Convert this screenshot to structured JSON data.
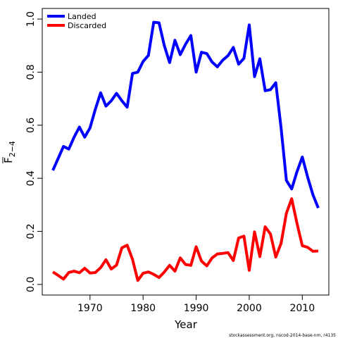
{
  "chart_data": {
    "type": "line",
    "xlabel": "Year",
    "ylabel_main": "F",
    "ylabel_sub": "2−4",
    "ylim": [
      -0.04,
      1.04
    ],
    "xlim": [
      1961,
      2015
    ],
    "xticks": [
      1970,
      1980,
      1990,
      2000,
      2010
    ],
    "xtick_labels": [
      "1970",
      "1980",
      "1990",
      "2000",
      "2010"
    ],
    "yticks": [
      0.0,
      0.2,
      0.4,
      0.6,
      0.8,
      1.0
    ],
    "ytick_labels": [
      "0.0",
      "0.2",
      "0.4",
      "0.6",
      "0.8",
      "1.0"
    ],
    "grid": false,
    "legend_position": "top-left",
    "footer": "stockassessment.org, nscod-2014-base-nm, r4135",
    "x": [
      1963,
      1964,
      1965,
      1966,
      1967,
      1968,
      1969,
      1970,
      1971,
      1972,
      1973,
      1974,
      1975,
      1976,
      1977,
      1978,
      1979,
      1980,
      1981,
      1982,
      1983,
      1984,
      1985,
      1986,
      1987,
      1988,
      1989,
      1990,
      1991,
      1992,
      1993,
      1994,
      1995,
      1996,
      1997,
      1998,
      1999,
      2000,
      2001,
      2002,
      2003,
      2004,
      2005,
      2006,
      2007,
      2008,
      2009,
      2010,
      2011,
      2012,
      2013
    ],
    "series": [
      {
        "name": "Landed",
        "color": "#0000ff",
        "values": [
          0.43,
          0.475,
          0.52,
          0.51,
          0.555,
          0.593,
          0.555,
          0.59,
          0.66,
          0.722,
          0.672,
          0.692,
          0.72,
          0.692,
          0.668,
          0.795,
          0.8,
          0.84,
          0.863,
          0.988,
          0.986,
          0.9,
          0.836,
          0.92,
          0.866,
          0.905,
          0.938,
          0.8,
          0.875,
          0.87,
          0.838,
          0.82,
          0.845,
          0.862,
          0.893,
          0.83,
          0.852,
          0.978,
          0.783,
          0.85,
          0.73,
          0.734,
          0.76,
          0.59,
          0.392,
          0.36,
          0.425,
          0.48,
          0.405,
          0.338,
          0.288
        ]
      },
      {
        "name": "Discarded",
        "color": "#ff0000",
        "values": [
          0.047,
          0.034,
          0.02,
          0.045,
          0.05,
          0.044,
          0.061,
          0.043,
          0.045,
          0.063,
          0.093,
          0.058,
          0.073,
          0.138,
          0.148,
          0.095,
          0.015,
          0.042,
          0.047,
          0.038,
          0.026,
          0.047,
          0.072,
          0.05,
          0.1,
          0.075,
          0.072,
          0.142,
          0.088,
          0.07,
          0.1,
          0.115,
          0.117,
          0.12,
          0.09,
          0.175,
          0.182,
          0.053,
          0.198,
          0.105,
          0.217,
          0.19,
          0.103,
          0.155,
          0.268,
          0.323,
          0.23,
          0.146,
          0.14,
          0.125,
          0.126
        ]
      }
    ]
  }
}
